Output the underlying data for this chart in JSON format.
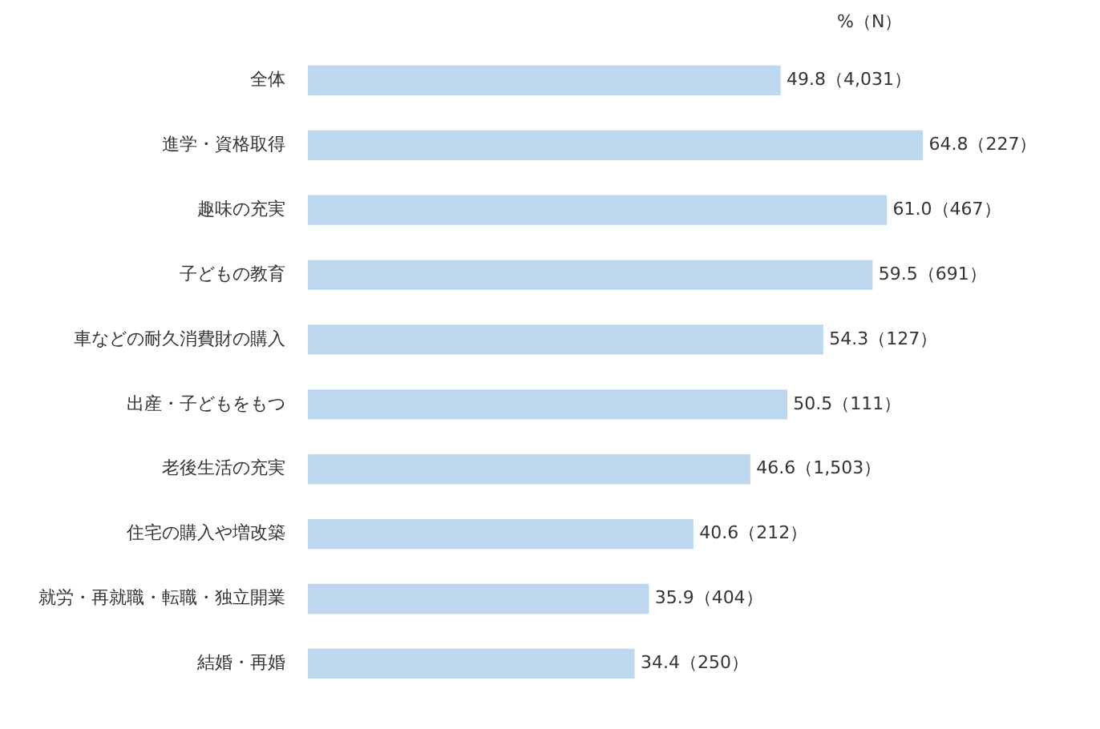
{
  "chart_data": {
    "type": "bar",
    "orientation": "horizontal",
    "categories": [
      "全体",
      "進学・資格取得",
      "趣味の充実",
      "子どもの教育",
      "車などの耐久消費財の購入",
      "出産・子どもをもつ",
      "老後生活の充実",
      "住宅の購入や増改築",
      "就労・再就職・転職・独立開業",
      "結婚・再婚"
    ],
    "values": [
      49.8,
      64.8,
      61.0,
      59.5,
      54.3,
      50.5,
      46.6,
      40.6,
      35.9,
      34.4
    ],
    "value_labels": [
      "49.8（4,031）",
      "64.8（227）",
      "61.0（467）",
      "59.5（691）",
      "54.3（127）",
      "50.5（111）",
      "46.6（1,503）",
      "40.6（212）",
      "35.9（404）",
      "34.4（250）"
    ],
    "color": "#bdd7ee",
    "tick_labels": "y",
    "legend": false,
    "annotations": [
      "%（N）"
    ]
  }
}
